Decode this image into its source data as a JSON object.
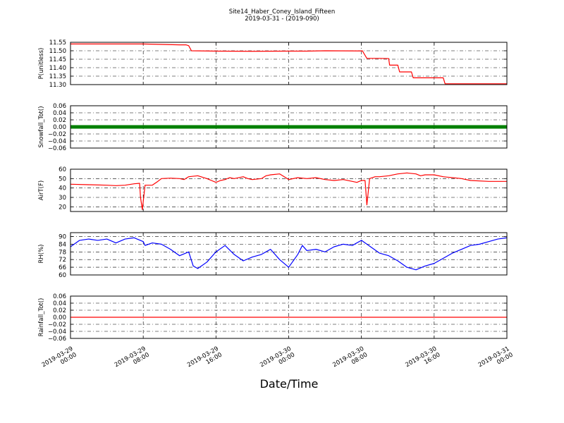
{
  "chart_data": {
    "type": "line",
    "title": "Site14_Haber_Coney_Island_Fifteen",
    "subtitle": "2019-03-31 - (2019-090)",
    "xlabel": "Date/Time",
    "x_range": [
      0,
      48
    ],
    "x_ticks": [
      {
        "at": 0,
        "date": "2019-03-29",
        "time": "00:00"
      },
      {
        "at": 8,
        "date": "2019-03-29",
        "time": "08:00"
      },
      {
        "at": 16,
        "date": "2019-03-29",
        "time": "16:00"
      },
      {
        "at": 24,
        "date": "2019-03-30",
        "time": "00:00"
      },
      {
        "at": 32,
        "date": "2019-03-30",
        "time": "08:00"
      },
      {
        "at": 40,
        "date": "2019-03-30",
        "time": "16:00"
      },
      {
        "at": 48,
        "date": "2019-03-31",
        "time": "00:00"
      }
    ],
    "grid": true,
    "panels": [
      {
        "ylabel": "P(unitless)",
        "ylim": [
          11.3,
          11.55
        ],
        "yticks": [
          "11.55",
          "11.50",
          "11.45",
          "11.40",
          "11.35",
          "11.30"
        ],
        "color": "#ff0000",
        "style": "line",
        "points": [
          [
            0,
            11.54
          ],
          [
            4,
            11.54
          ],
          [
            8,
            11.54
          ],
          [
            12,
            11.535
          ],
          [
            12.7,
            11.535
          ],
          [
            13,
            11.53
          ],
          [
            13.3,
            11.5
          ],
          [
            16,
            11.498
          ],
          [
            20,
            11.497
          ],
          [
            24,
            11.498
          ],
          [
            26,
            11.498
          ],
          [
            28,
            11.5
          ],
          [
            32,
            11.499
          ],
          [
            32.1,
            11.5
          ],
          [
            32.6,
            11.455
          ],
          [
            34,
            11.455
          ],
          [
            35,
            11.454
          ],
          [
            35.1,
            11.415
          ],
          [
            36,
            11.415
          ],
          [
            36.2,
            11.375
          ],
          [
            37.5,
            11.375
          ],
          [
            37.7,
            11.34
          ],
          [
            40,
            11.34
          ],
          [
            41,
            11.34
          ],
          [
            41.2,
            11.305
          ],
          [
            44,
            11.305
          ],
          [
            48,
            11.305
          ]
        ]
      },
      {
        "ylabel": "Snowfall_Tot()",
        "ylim": [
          -0.06,
          0.06
        ],
        "yticks": [
          "0.06",
          "0.04",
          "0.02",
          "0.00",
          "−0.02",
          "−0.04",
          "−0.06"
        ],
        "color": "#008000",
        "style": "markers",
        "points": [
          [
            0,
            0
          ],
          [
            48,
            0
          ]
        ]
      },
      {
        "ylabel": "AirT(F)",
        "ylim": [
          15,
          60
        ],
        "yticks": [
          "60",
          "50",
          "40",
          "30",
          "20"
        ],
        "color": "#ff0000",
        "style": "line",
        "points": [
          [
            0,
            44
          ],
          [
            2,
            43.5
          ],
          [
            4,
            43
          ],
          [
            5,
            42.5
          ],
          [
            6,
            43
          ],
          [
            7,
            44.5
          ],
          [
            7.6,
            45
          ],
          [
            7.7,
            30
          ],
          [
            7.9,
            17
          ],
          [
            8.2,
            43
          ],
          [
            9,
            43
          ],
          [
            9.6,
            47
          ],
          [
            10,
            50
          ],
          [
            11,
            50.5
          ],
          [
            12,
            50
          ],
          [
            12.5,
            49
          ],
          [
            13,
            52
          ],
          [
            14,
            53
          ],
          [
            15,
            50
          ],
          [
            15.5,
            48
          ],
          [
            16,
            46
          ],
          [
            16.5,
            48
          ],
          [
            17,
            49
          ],
          [
            17.5,
            51
          ],
          [
            18,
            50
          ],
          [
            19,
            52
          ],
          [
            19.5,
            50
          ],
          [
            20,
            49
          ],
          [
            21,
            50
          ],
          [
            21.5,
            53
          ],
          [
            22,
            54
          ],
          [
            23,
            55
          ],
          [
            23.5,
            52
          ],
          [
            24,
            49
          ],
          [
            25,
            51
          ],
          [
            26,
            50
          ],
          [
            27,
            51
          ],
          [
            28,
            49
          ],
          [
            29,
            48
          ],
          [
            30,
            49
          ],
          [
            31,
            47
          ],
          [
            31.5,
            46
          ],
          [
            32,
            48
          ],
          [
            32.4,
            48
          ],
          [
            32.6,
            22
          ],
          [
            32.9,
            50
          ],
          [
            33.5,
            52
          ],
          [
            34,
            52
          ],
          [
            35,
            53
          ],
          [
            36,
            55
          ],
          [
            37,
            56
          ],
          [
            38,
            55
          ],
          [
            38.5,
            53
          ],
          [
            39,
            54
          ],
          [
            40,
            54
          ],
          [
            41,
            52
          ],
          [
            42,
            51
          ],
          [
            43,
            50
          ],
          [
            44,
            48
          ],
          [
            46,
            47
          ],
          [
            48,
            47
          ]
        ]
      },
      {
        "ylabel": "RH(%)",
        "ylim": [
          60,
          93
        ],
        "yticks": [
          "90",
          "84",
          "78",
          "72",
          "66",
          "60"
        ],
        "color": "#0000ff",
        "style": "line",
        "points": [
          [
            0,
            82
          ],
          [
            1,
            87
          ],
          [
            2,
            88
          ],
          [
            3,
            87
          ],
          [
            4,
            88
          ],
          [
            5,
            85
          ],
          [
            6,
            88
          ],
          [
            7,
            89
          ],
          [
            8,
            86
          ],
          [
            8.2,
            83
          ],
          [
            9,
            85
          ],
          [
            10,
            84
          ],
          [
            11,
            80
          ],
          [
            12,
            75
          ],
          [
            13,
            78
          ],
          [
            13.5,
            67
          ],
          [
            14,
            65
          ],
          [
            15,
            70
          ],
          [
            16,
            78
          ],
          [
            17,
            83
          ],
          [
            18,
            76
          ],
          [
            19,
            71
          ],
          [
            20,
            74
          ],
          [
            21,
            76
          ],
          [
            22,
            80
          ],
          [
            23,
            72
          ],
          [
            24,
            66
          ],
          [
            25,
            76
          ],
          [
            25.5,
            83
          ],
          [
            26,
            79
          ],
          [
            27,
            80
          ],
          [
            28,
            78
          ],
          [
            29,
            82
          ],
          [
            30,
            84
          ],
          [
            31,
            83
          ],
          [
            32,
            87
          ],
          [
            33,
            82
          ],
          [
            34,
            77
          ],
          [
            35,
            75
          ],
          [
            36,
            71
          ],
          [
            37,
            66
          ],
          [
            38,
            64
          ],
          [
            39,
            67
          ],
          [
            40,
            69
          ],
          [
            41,
            73
          ],
          [
            42,
            77
          ],
          [
            43,
            80
          ],
          [
            44,
            83
          ],
          [
            45,
            84
          ],
          [
            46,
            86
          ],
          [
            47,
            88
          ],
          [
            48,
            89
          ]
        ]
      },
      {
        "ylabel": "Rainfall_Tot()",
        "ylim": [
          -0.06,
          0.06
        ],
        "yticks": [
          "0.06",
          "0.04",
          "0.02",
          "0.00",
          "−0.02",
          "−0.04",
          "−0.06"
        ],
        "color": "#ff0000",
        "style": "line",
        "points": [
          [
            0,
            0
          ],
          [
            48,
            0
          ]
        ]
      }
    ]
  }
}
